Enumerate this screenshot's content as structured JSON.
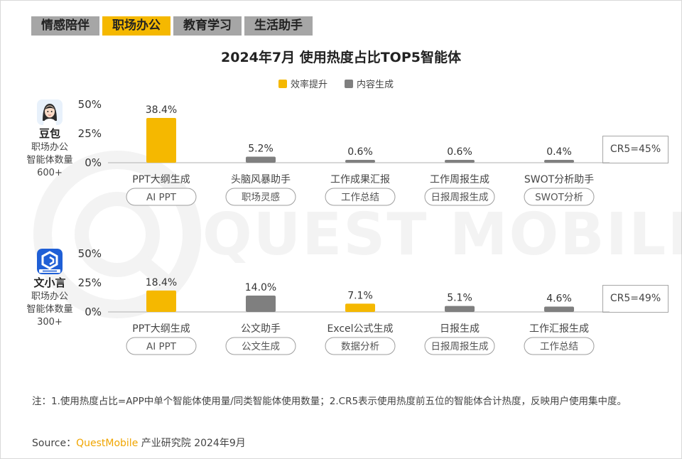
{
  "tabs": [
    "情感陪伴",
    "职场办公",
    "教育学习",
    "生活助手"
  ],
  "title": "2024年7月 使用热度占比TOP5智能体",
  "legend": [
    {
      "label": "效率提升",
      "color": "#f5b800"
    },
    {
      "label": "内容生成",
      "color": "#7f7f7f"
    }
  ],
  "apps": [
    {
      "name": "豆包",
      "desc1": "职场办公",
      "desc2": "智能体数量",
      "desc3": "600+",
      "icon": "doubao-avatar-icon"
    },
    {
      "name": "文小言",
      "desc1": "职场办公",
      "desc2": "智能体数量",
      "desc3": "300+",
      "icon": "wenxiaoyan-logo-icon"
    }
  ],
  "chart_data": [
    {
      "type": "bar",
      "app": "豆包",
      "categories": [
        "PPT大纲生成",
        "头脑风暴助手",
        "工作成果汇报",
        "工作周报生成",
        "SWOT分析助手"
      ],
      "tags": [
        "AI PPT",
        "职场灵感",
        "工作总结",
        "日报周报生成",
        "SWOT分析"
      ],
      "values": [
        38.4,
        5.2,
        0.6,
        0.6,
        0.4
      ],
      "labels": [
        "38.4%",
        "5.2%",
        "0.6%",
        "0.6%",
        "0.4%"
      ],
      "groups": [
        "效率提升",
        "内容生成",
        "内容生成",
        "内容生成",
        "内容生成"
      ],
      "yticks": [
        "50%",
        "25%",
        "0%"
      ],
      "ylim": [
        0,
        50
      ],
      "cr5": "CR5=45%"
    },
    {
      "type": "bar",
      "app": "文小言",
      "categories": [
        "PPT大纲生成",
        "公文助手",
        "Excel公式生成",
        "日报生成",
        "工作汇报生成"
      ],
      "tags": [
        "AI PPT",
        "公文生成",
        "数据分析",
        "日报周报生成",
        "工作总结"
      ],
      "values": [
        18.4,
        14.0,
        7.1,
        5.1,
        4.6
      ],
      "labels": [
        "18.4%",
        "14.0%",
        "7.1%",
        "5.1%",
        "4.6%"
      ],
      "groups": [
        "效率提升",
        "内容生成",
        "效率提升",
        "内容生成",
        "内容生成"
      ],
      "yticks": [
        "50%",
        "25%",
        "0%"
      ],
      "ylim": [
        0,
        50
      ],
      "cr5": "CR5=49%"
    }
  ],
  "note": "注：1.使用热度占比=APP中单个智能体使用量/同类智能体使用数量；2.CR5表示使用热度前五位的智能体合计热度，反映用户使用集中度。",
  "source": {
    "prefix": "Source：",
    "brand": "QuestMobile",
    "suffix": " 产业研究院 2024年9月"
  },
  "watermark": "QUEST MOBILE"
}
